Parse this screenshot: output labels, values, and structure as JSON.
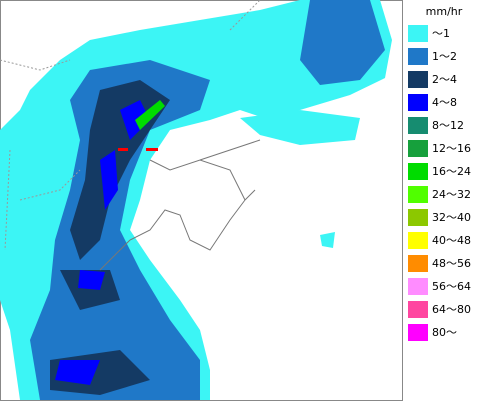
{
  "legend": {
    "unit": "mm/hr",
    "items": [
      {
        "label": "～1",
        "color": "#3cf5f5"
      },
      {
        "label": "1～2",
        "color": "#1f78c8"
      },
      {
        "label": "2～4",
        "color": "#143a64"
      },
      {
        "label": "4～8",
        "color": "#0000ff"
      },
      {
        "label": "8～12",
        "color": "#168c70"
      },
      {
        "label": "12～16",
        "color": "#16a03c"
      },
      {
        "label": "16～24",
        "color": "#00dc00"
      },
      {
        "label": "24～32",
        "color": "#50ff00"
      },
      {
        "label": "32～40",
        "color": "#8cc800"
      },
      {
        "label": "40～48",
        "color": "#ffff00"
      },
      {
        "label": "48～56",
        "color": "#ff8c00"
      },
      {
        "label": "56～64",
        "color": "#ff8cff"
      },
      {
        "label": "64～80",
        "color": "#ff46a0"
      },
      {
        "label": "80～",
        "color": "#ff00ff"
      }
    ]
  }
}
